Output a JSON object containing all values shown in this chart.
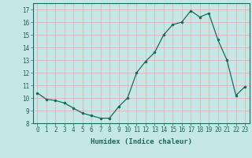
{
  "x": [
    0,
    1,
    2,
    3,
    4,
    5,
    6,
    7,
    8,
    9,
    10,
    11,
    12,
    13,
    14,
    15,
    16,
    17,
    18,
    19,
    20,
    21,
    22,
    23
  ],
  "y": [
    10.4,
    9.9,
    9.8,
    9.6,
    9.2,
    8.8,
    8.6,
    8.4,
    8.4,
    9.3,
    10.0,
    12.0,
    12.9,
    13.6,
    15.0,
    15.8,
    16.0,
    16.9,
    16.4,
    16.7,
    14.6,
    13.0,
    10.2,
    10.9
  ],
  "xlabel": "Humidex (Indice chaleur)",
  "ylim": [
    8,
    17.5
  ],
  "xlim": [
    -0.5,
    23.5
  ],
  "yticks": [
    8,
    9,
    10,
    11,
    12,
    13,
    14,
    15,
    16,
    17
  ],
  "xticks": [
    0,
    1,
    2,
    3,
    4,
    5,
    6,
    7,
    8,
    9,
    10,
    11,
    12,
    13,
    14,
    15,
    16,
    17,
    18,
    19,
    20,
    21,
    22,
    23
  ],
  "line_color": "#1a6b5a",
  "marker_color": "#1a6b5a",
  "bg_color": "#c5e8e6",
  "grid_color": "#e0aaaa",
  "axis_color": "#1a6b5a",
  "label_fontsize": 6.5,
  "tick_fontsize": 5.5
}
